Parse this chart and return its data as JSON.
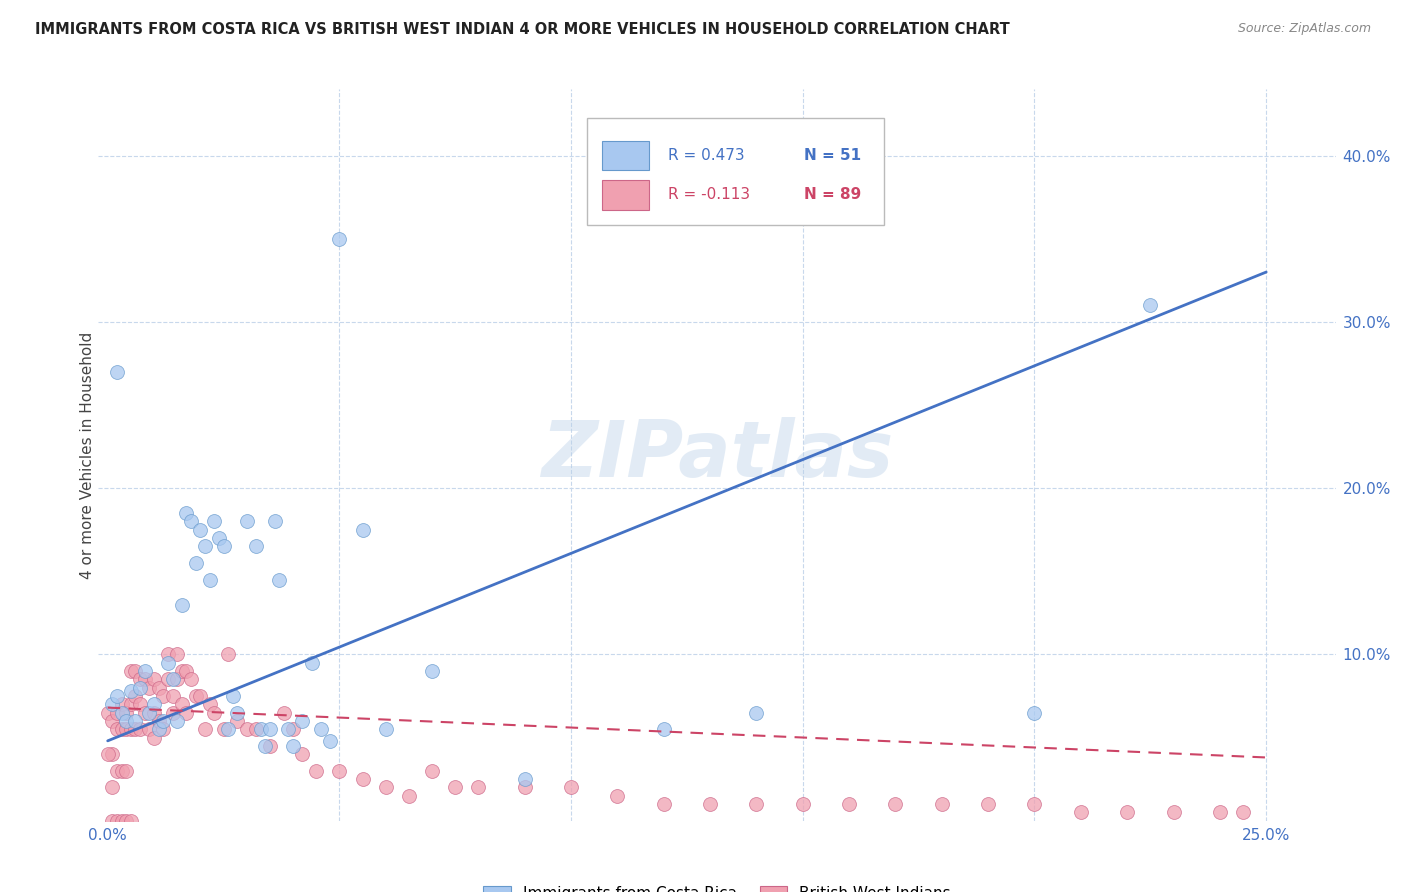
{
  "title": "IMMIGRANTS FROM COSTA RICA VS BRITISH WEST INDIAN 4 OR MORE VEHICLES IN HOUSEHOLD CORRELATION CHART",
  "source": "Source: ZipAtlas.com",
  "ylabel": "4 or more Vehicles in Household",
  "ylim": [
    0.0,
    0.44
  ],
  "xlim": [
    -0.002,
    0.265
  ],
  "yticks_right": [
    0.1,
    0.2,
    0.3,
    0.4
  ],
  "ytick_labels_right": [
    "10.0%",
    "20.0%",
    "30.0%",
    "40.0%"
  ],
  "legend_blue_R": "R = 0.473",
  "legend_blue_N": "N = 51",
  "legend_pink_R": "R = -0.113",
  "legend_pink_N": "N = 89",
  "color_blue_fill": "#a8c8f0",
  "color_blue_edge": "#6699cc",
  "color_pink_fill": "#f0a0b0",
  "color_pink_edge": "#cc6688",
  "color_line_blue": "#4472c4",
  "color_line_pink": "#cc4466",
  "watermark": "ZIPatlas",
  "blue_line_x": [
    0.0,
    0.25
  ],
  "blue_line_y": [
    0.048,
    0.33
  ],
  "pink_line_x": [
    0.0,
    0.25
  ],
  "pink_line_y": [
    0.068,
    0.038
  ],
  "blue_scatter_x": [
    0.001,
    0.002,
    0.003,
    0.004,
    0.005,
    0.006,
    0.007,
    0.008,
    0.009,
    0.01,
    0.011,
    0.012,
    0.013,
    0.014,
    0.015,
    0.016,
    0.017,
    0.018,
    0.019,
    0.02,
    0.021,
    0.022,
    0.023,
    0.024,
    0.025,
    0.026,
    0.027,
    0.028,
    0.03,
    0.032,
    0.033,
    0.034,
    0.035,
    0.036,
    0.037,
    0.039,
    0.04,
    0.042,
    0.044,
    0.046,
    0.048,
    0.05,
    0.055,
    0.06,
    0.07,
    0.09,
    0.12,
    0.14,
    0.2,
    0.225,
    0.002
  ],
  "blue_scatter_y": [
    0.07,
    0.075,
    0.065,
    0.06,
    0.078,
    0.06,
    0.08,
    0.09,
    0.065,
    0.07,
    0.055,
    0.06,
    0.095,
    0.085,
    0.06,
    0.13,
    0.185,
    0.18,
    0.155,
    0.175,
    0.165,
    0.145,
    0.18,
    0.17,
    0.165,
    0.055,
    0.075,
    0.065,
    0.18,
    0.165,
    0.055,
    0.045,
    0.055,
    0.18,
    0.145,
    0.055,
    0.045,
    0.06,
    0.095,
    0.055,
    0.048,
    0.35,
    0.175,
    0.055,
    0.09,
    0.025,
    0.055,
    0.065,
    0.065,
    0.31,
    0.27
  ],
  "pink_scatter_x": [
    0.0,
    0.001,
    0.001,
    0.001,
    0.002,
    0.002,
    0.002,
    0.003,
    0.003,
    0.003,
    0.004,
    0.004,
    0.004,
    0.005,
    0.005,
    0.005,
    0.006,
    0.006,
    0.006,
    0.007,
    0.007,
    0.007,
    0.008,
    0.008,
    0.009,
    0.009,
    0.01,
    0.01,
    0.01,
    0.011,
    0.011,
    0.012,
    0.012,
    0.013,
    0.013,
    0.014,
    0.014,
    0.015,
    0.015,
    0.016,
    0.016,
    0.017,
    0.017,
    0.018,
    0.019,
    0.02,
    0.021,
    0.022,
    0.023,
    0.025,
    0.026,
    0.028,
    0.03,
    0.032,
    0.035,
    0.038,
    0.04,
    0.042,
    0.045,
    0.05,
    0.055,
    0.06,
    0.065,
    0.07,
    0.075,
    0.08,
    0.09,
    0.1,
    0.11,
    0.12,
    0.13,
    0.14,
    0.15,
    0.16,
    0.17,
    0.18,
    0.19,
    0.2,
    0.21,
    0.22,
    0.23,
    0.24,
    0.245,
    0.0,
    0.001,
    0.002,
    0.003,
    0.004,
    0.005
  ],
  "pink_scatter_y": [
    0.065,
    0.06,
    0.04,
    0.02,
    0.065,
    0.055,
    0.03,
    0.07,
    0.055,
    0.03,
    0.065,
    0.055,
    0.03,
    0.09,
    0.07,
    0.055,
    0.09,
    0.075,
    0.055,
    0.085,
    0.07,
    0.055,
    0.085,
    0.065,
    0.08,
    0.055,
    0.085,
    0.065,
    0.05,
    0.08,
    0.06,
    0.075,
    0.055,
    0.1,
    0.085,
    0.075,
    0.065,
    0.1,
    0.085,
    0.09,
    0.07,
    0.09,
    0.065,
    0.085,
    0.075,
    0.075,
    0.055,
    0.07,
    0.065,
    0.055,
    0.1,
    0.06,
    0.055,
    0.055,
    0.045,
    0.065,
    0.055,
    0.04,
    0.03,
    0.03,
    0.025,
    0.02,
    0.015,
    0.03,
    0.02,
    0.02,
    0.02,
    0.02,
    0.015,
    0.01,
    0.01,
    0.01,
    0.01,
    0.01,
    0.01,
    0.01,
    0.01,
    0.01,
    0.005,
    0.005,
    0.005,
    0.005,
    0.005,
    0.04,
    0.0,
    0.0,
    0.0,
    0.0,
    0.0
  ]
}
